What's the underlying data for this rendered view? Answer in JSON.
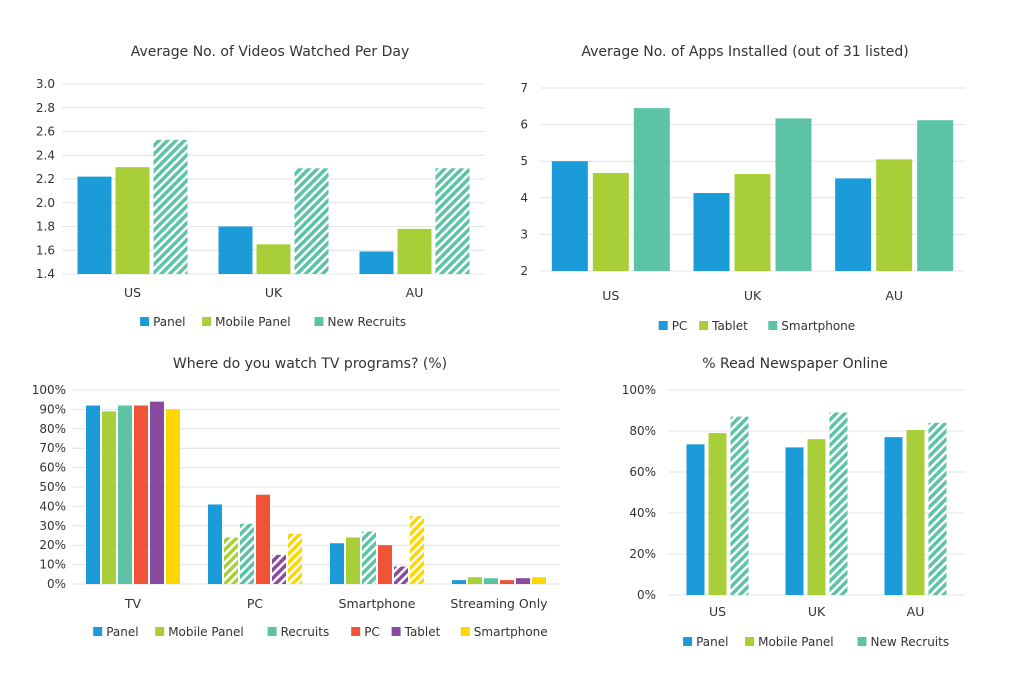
{
  "colors": {
    "blue": "#1b9bd7",
    "green": "#a9cf38",
    "teal": "#5cc3a7",
    "red": "#f05336",
    "purple": "#8a4a9e",
    "yellow": "#fcd800"
  },
  "chart_data": [
    {
      "type": "bar",
      "title": "Average No. of Videos Watched Per Day",
      "categories": [
        "US",
        "UK",
        "AU"
      ],
      "ylim": [
        1.4,
        3.0
      ],
      "yticks": [
        "1.4",
        "1.6",
        "1.8",
        "2.0",
        "2.2",
        "2.4",
        "2.6",
        "2.8",
        "3.0"
      ],
      "grid": true,
      "legend": "bottom",
      "series": [
        {
          "name": "Panel",
          "color": "#1b9bd7",
          "values": [
            2.22,
            1.8,
            1.59
          ],
          "hatched": [
            false,
            false,
            false
          ]
        },
        {
          "name": "Mobile Panel",
          "color": "#a9cf38",
          "values": [
            2.3,
            1.65,
            1.78
          ],
          "hatched": [
            false,
            false,
            false
          ]
        },
        {
          "name": "New Recruits",
          "color": "#5cc3a7",
          "values": [
            2.53,
            2.29,
            2.29
          ],
          "hatched": [
            true,
            true,
            true
          ]
        }
      ]
    },
    {
      "type": "bar",
      "title": "Average No. of Apps Installed (out of 31 listed)",
      "categories": [
        "US",
        "UK",
        "AU"
      ],
      "ylim": [
        2,
        7
      ],
      "yticks": [
        "2",
        "3",
        "4",
        "5",
        "6",
        "7"
      ],
      "grid": true,
      "legend": "bottom",
      "series": [
        {
          "name": "PC",
          "color": "#1b9bd7",
          "values": [
            5.0,
            4.13,
            4.53
          ],
          "hatched": [
            false,
            false,
            false
          ]
        },
        {
          "name": "Tablet",
          "color": "#a9cf38",
          "values": [
            4.68,
            4.65,
            5.05
          ],
          "hatched": [
            false,
            false,
            false
          ]
        },
        {
          "name": "Smartphone",
          "color": "#5cc3a7",
          "values": [
            6.45,
            6.17,
            6.12
          ],
          "hatched": [
            false,
            false,
            false
          ]
        }
      ]
    },
    {
      "type": "bar",
      "title": "Where do you watch TV programs? (%)",
      "categories": [
        "TV",
        "PC",
        "Smartphone",
        "Streaming Only"
      ],
      "ylim": [
        0,
        100
      ],
      "yticks": [
        "0%",
        "10%",
        "20%",
        "30%",
        "40%",
        "50%",
        "60%",
        "70%",
        "80%",
        "90%",
        "100%"
      ],
      "grid": true,
      "legend": "bottom",
      "series": [
        {
          "name": "Panel",
          "color": "#1b9bd7",
          "values": [
            92,
            41,
            21,
            2
          ],
          "hatched": [
            false,
            false,
            false,
            false
          ]
        },
        {
          "name": "Mobile Panel",
          "color": "#a9cf38",
          "values": [
            89,
            24,
            24,
            3.5
          ],
          "hatched": [
            false,
            true,
            false,
            false
          ]
        },
        {
          "name": "Recruits",
          "color": "#5cc3a7",
          "values": [
            92,
            31,
            27,
            3
          ],
          "hatched": [
            false,
            true,
            true,
            false
          ]
        },
        {
          "name": "PC",
          "color": "#f05336",
          "values": [
            92,
            46,
            20,
            2
          ],
          "hatched": [
            false,
            false,
            false,
            false
          ]
        },
        {
          "name": "Tablet",
          "color": "#8a4a9e",
          "values": [
            94,
            15,
            9,
            3
          ],
          "hatched": [
            false,
            true,
            true,
            false
          ]
        },
        {
          "name": "Smartphone",
          "color": "#fcd800",
          "values": [
            90,
            26,
            35,
            3.5
          ],
          "hatched": [
            false,
            true,
            true,
            false
          ]
        }
      ]
    },
    {
      "type": "bar",
      "title": "% Read Newspaper Online",
      "categories": [
        "US",
        "UK",
        "AU"
      ],
      "ylim": [
        0,
        100
      ],
      "yticks": [
        "0%",
        "20%",
        "40%",
        "60%",
        "80%",
        "100%"
      ],
      "grid": true,
      "legend": "bottom",
      "series": [
        {
          "name": "Panel",
          "color": "#1b9bd7",
          "values": [
            73.5,
            72,
            77
          ],
          "hatched": [
            false,
            false,
            false
          ]
        },
        {
          "name": "Mobile Panel",
          "color": "#a9cf38",
          "values": [
            79,
            76,
            80.5
          ],
          "hatched": [
            false,
            false,
            false
          ]
        },
        {
          "name": "New Recruits",
          "color": "#5cc3a7",
          "values": [
            87,
            89,
            84
          ],
          "hatched": [
            true,
            true,
            true
          ]
        }
      ]
    }
  ]
}
